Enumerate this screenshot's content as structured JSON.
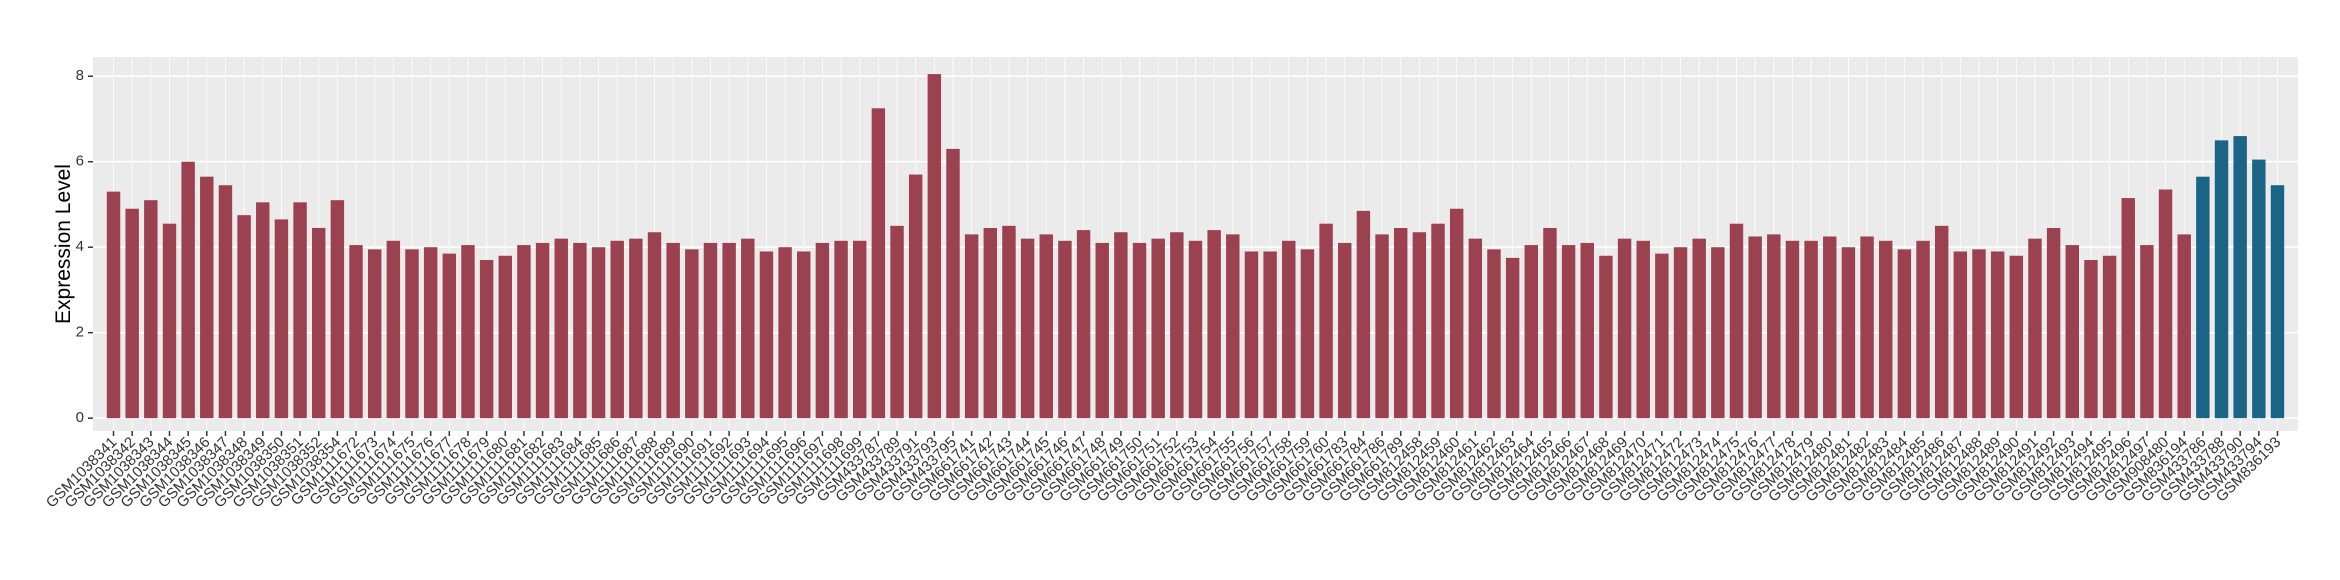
{
  "chart_data": {
    "type": "bar",
    "y_label": "Expression Level",
    "categories": [
      "GSM1038341",
      "GSM1038342",
      "GSM1038343",
      "GSM1038344",
      "GSM1038345",
      "GSM1038346",
      "GSM1038347",
      "GSM1038348",
      "GSM1038349",
      "GSM1038350",
      "GSM1038351",
      "GSM1038352",
      "GSM1038354",
      "GSM1111672",
      "GSM1111673",
      "GSM1111674",
      "GSM1111675",
      "GSM1111676",
      "GSM1111677",
      "GSM1111678",
      "GSM1111679",
      "GSM1111680",
      "GSM1111681",
      "GSM1111682",
      "GSM1111683",
      "GSM1111684",
      "GSM1111685",
      "GSM1111686",
      "GSM1111687",
      "GSM1111688",
      "GSM1111689",
      "GSM1111690",
      "GSM1111691",
      "GSM1111692",
      "GSM1111693",
      "GSM1111694",
      "GSM1111695",
      "GSM1111696",
      "GSM1111697",
      "GSM1111698",
      "GSM1111699",
      "GSM433787",
      "GSM433789",
      "GSM433791",
      "GSM433793",
      "GSM433795",
      "GSM661741",
      "GSM661742",
      "GSM661743",
      "GSM661744",
      "GSM661745",
      "GSM661746",
      "GSM661747",
      "GSM661748",
      "GSM661749",
      "GSM661750",
      "GSM661751",
      "GSM661752",
      "GSM661753",
      "GSM661754",
      "GSM661755",
      "GSM661756",
      "GSM661757",
      "GSM661758",
      "GSM661759",
      "GSM661760",
      "GSM661783",
      "GSM661784",
      "GSM661786",
      "GSM661789",
      "GSM812458",
      "GSM812459",
      "GSM812460",
      "GSM812461",
      "GSM812462",
      "GSM812463",
      "GSM812464",
      "GSM812465",
      "GSM812466",
      "GSM812467",
      "GSM812468",
      "GSM812469",
      "GSM812470",
      "GSM812471",
      "GSM812472",
      "GSM812473",
      "GSM812474",
      "GSM812475",
      "GSM812476",
      "GSM812477",
      "GSM812478",
      "GSM812479",
      "GSM812480",
      "GSM812481",
      "GSM812482",
      "GSM812483",
      "GSM812484",
      "GSM812485",
      "GSM812486",
      "GSM812487",
      "GSM812488",
      "GSM812489",
      "GSM812490",
      "GSM812491",
      "GSM812492",
      "GSM812493",
      "GSM812494",
      "GSM812495",
      "GSM812496",
      "GSM812497",
      "GSM908480",
      "GSM836194",
      "GSM433786",
      "GSM433788",
      "GSM433790",
      "GSM433794",
      "GSM836193"
    ],
    "values": [
      5.3,
      4.9,
      5.1,
      4.55,
      6.0,
      5.65,
      5.45,
      4.75,
      5.05,
      4.65,
      5.05,
      4.45,
      5.1,
      4.05,
      3.95,
      4.15,
      3.95,
      4.0,
      3.85,
      4.05,
      3.7,
      3.8,
      4.05,
      4.1,
      4.2,
      4.1,
      4.0,
      4.15,
      4.2,
      4.35,
      4.1,
      3.95,
      4.1,
      4.1,
      4.2,
      3.9,
      4.0,
      3.9,
      4.1,
      4.15,
      4.15,
      7.25,
      4.5,
      5.7,
      8.05,
      6.3,
      4.3,
      4.45,
      4.5,
      4.2,
      4.3,
      4.15,
      4.4,
      4.1,
      4.35,
      4.1,
      4.2,
      4.35,
      4.15,
      4.4,
      4.3,
      3.9,
      3.9,
      4.15,
      3.95,
      4.55,
      4.1,
      4.85,
      4.3,
      4.45,
      4.35,
      4.55,
      4.9,
      4.2,
      3.95,
      3.75,
      4.05,
      4.45,
      4.05,
      4.1,
      3.8,
      4.2,
      4.15,
      3.85,
      4.0,
      4.2,
      4.0,
      4.55,
      4.25,
      4.3,
      4.15,
      4.15,
      4.25,
      4.0,
      4.25,
      4.15,
      3.95,
      4.15,
      4.5,
      3.9,
      3.95,
      3.9,
      3.8,
      4.2,
      4.45,
      4.05,
      3.7,
      3.8,
      5.15,
      4.05,
      5.35,
      4.3,
      5.65,
      6.5,
      6.6,
      6.05,
      5.45
    ],
    "colors": [
      "#9b4150",
      "#9b4150",
      "#9b4150",
      "#9b4150",
      "#9b4150",
      "#9b4150",
      "#9b4150",
      "#9b4150",
      "#9b4150",
      "#9b4150",
      "#9b4150",
      "#9b4150",
      "#9b4150",
      "#9b4150",
      "#9b4150",
      "#9b4150",
      "#9b4150",
      "#9b4150",
      "#9b4150",
      "#9b4150",
      "#9b4150",
      "#9b4150",
      "#9b4150",
      "#9b4150",
      "#9b4150",
      "#9b4150",
      "#9b4150",
      "#9b4150",
      "#9b4150",
      "#9b4150",
      "#9b4150",
      "#9b4150",
      "#9b4150",
      "#9b4150",
      "#9b4150",
      "#9b4150",
      "#9b4150",
      "#9b4150",
      "#9b4150",
      "#9b4150",
      "#9b4150",
      "#9b4150",
      "#9b4150",
      "#9b4150",
      "#9b4150",
      "#9b4150",
      "#9b4150",
      "#9b4150",
      "#9b4150",
      "#9b4150",
      "#9b4150",
      "#9b4150",
      "#9b4150",
      "#9b4150",
      "#9b4150",
      "#9b4150",
      "#9b4150",
      "#9b4150",
      "#9b4150",
      "#9b4150",
      "#9b4150",
      "#9b4150",
      "#9b4150",
      "#9b4150",
      "#9b4150",
      "#9b4150",
      "#9b4150",
      "#9b4150",
      "#9b4150",
      "#9b4150",
      "#9b4150",
      "#9b4150",
      "#9b4150",
      "#9b4150",
      "#9b4150",
      "#9b4150",
      "#9b4150",
      "#9b4150",
      "#9b4150",
      "#9b4150",
      "#9b4150",
      "#9b4150",
      "#9b4150",
      "#9b4150",
      "#9b4150",
      "#9b4150",
      "#9b4150",
      "#9b4150",
      "#9b4150",
      "#9b4150",
      "#9b4150",
      "#9b4150",
      "#9b4150",
      "#9b4150",
      "#9b4150",
      "#9b4150",
      "#9b4150",
      "#9b4150",
      "#9b4150",
      "#9b4150",
      "#9b4150",
      "#9b4150",
      "#9b4150",
      "#9b4150",
      "#9b4150",
      "#9b4150",
      "#9b4150",
      "#9b4150",
      "#9b4150",
      "#9b4150",
      "#9b4150",
      "#9b4150",
      "#1a6585",
      "#1a6585",
      "#1a6585",
      "#1a6585",
      "#1a6585"
    ],
    "ylim": [
      -0.3,
      8.45
    ],
    "yticks": [
      0,
      2,
      4,
      6,
      8
    ],
    "grid": true
  }
}
